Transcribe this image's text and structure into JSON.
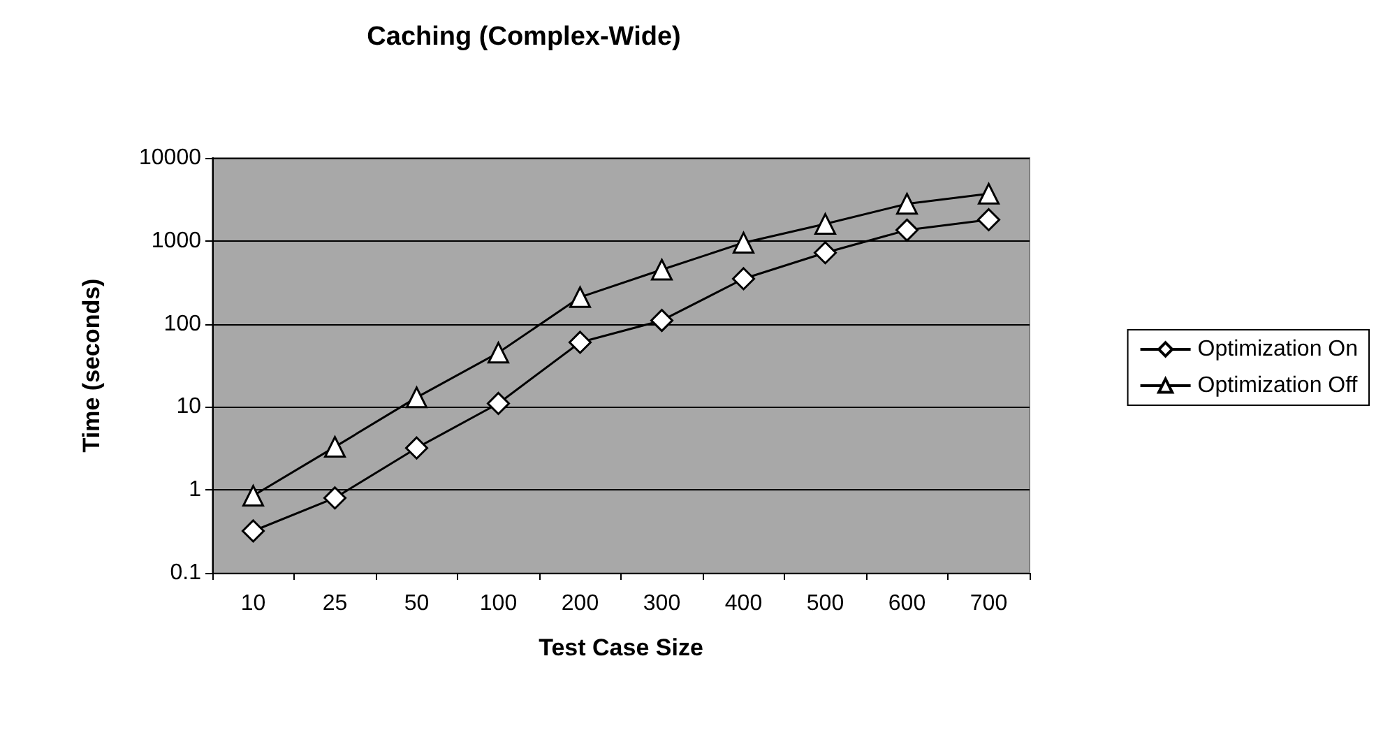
{
  "chart_data": {
    "type": "line",
    "title": "Caching (Complex-Wide)",
    "xlabel": "Test Case Size",
    "ylabel": "Time (seconds)",
    "categories": [
      "10",
      "25",
      "50",
      "100",
      "200",
      "300",
      "400",
      "500",
      "600",
      "700"
    ],
    "series": [
      {
        "name": "Optimization On",
        "color": "#000000",
        "marker": "diamond",
        "values": [
          0.32,
          0.8,
          3.2,
          11,
          60,
          110,
          350,
          720,
          1350,
          1800
        ]
      },
      {
        "name": "Optimization Off",
        "color": "#000000",
        "marker": "triangle",
        "values": [
          0.85,
          3.3,
          13,
          45,
          210,
          450,
          950,
          1600,
          2800,
          3700
        ]
      }
    ],
    "log": true,
    "ylim": [
      0.1,
      10000
    ],
    "yticks": [
      0.1,
      1,
      10,
      100,
      1000,
      10000
    ],
    "grid": "y",
    "legend": "right",
    "line_style": "solid"
  }
}
